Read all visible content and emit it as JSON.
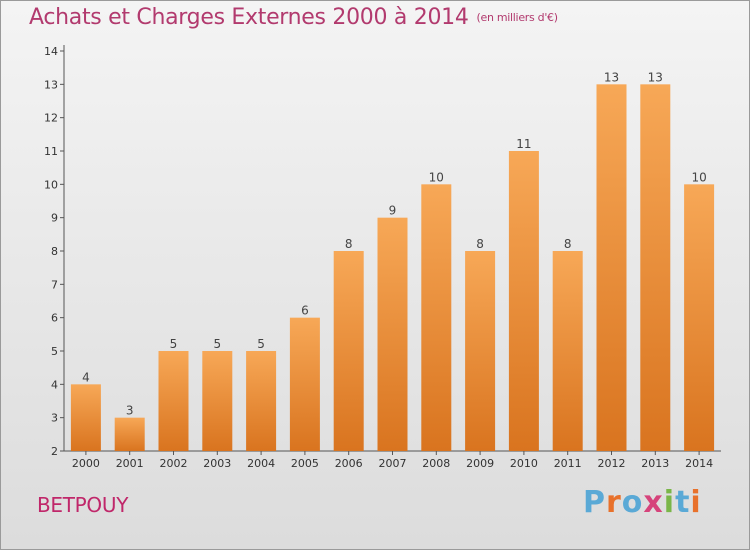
{
  "header": {
    "title": "Achats et Charges Externes 2000 à 2014",
    "subtitle": "(en milliers d'€)"
  },
  "footer": {
    "commune": "BETPOUY",
    "logo_text": "Proxiti",
    "logo_colors": [
      "#5aa9d6",
      "#e8712b",
      "#5aa9d6",
      "#d6437b",
      "#7ab648",
      "#5aa9d6",
      "#e8712b"
    ]
  },
  "colors": {
    "bar_light": "#f7a857",
    "bar_dark": "#d9741f",
    "title": "#b23a6e"
  },
  "chart_data": {
    "type": "bar",
    "categories": [
      "2000",
      "2001",
      "2002",
      "2003",
      "2004",
      "2005",
      "2006",
      "2007",
      "2008",
      "2009",
      "2010",
      "2011",
      "2012",
      "2013",
      "2014"
    ],
    "values": [
      4,
      3,
      5,
      5,
      5,
      6,
      8,
      9,
      10,
      8,
      11,
      8,
      13,
      13,
      10
    ],
    "ylim": [
      2,
      14
    ],
    "yticks": [
      2,
      3,
      4,
      5,
      6,
      7,
      8,
      9,
      10,
      11,
      12,
      13,
      14
    ],
    "grid": false,
    "data_labels": true
  }
}
